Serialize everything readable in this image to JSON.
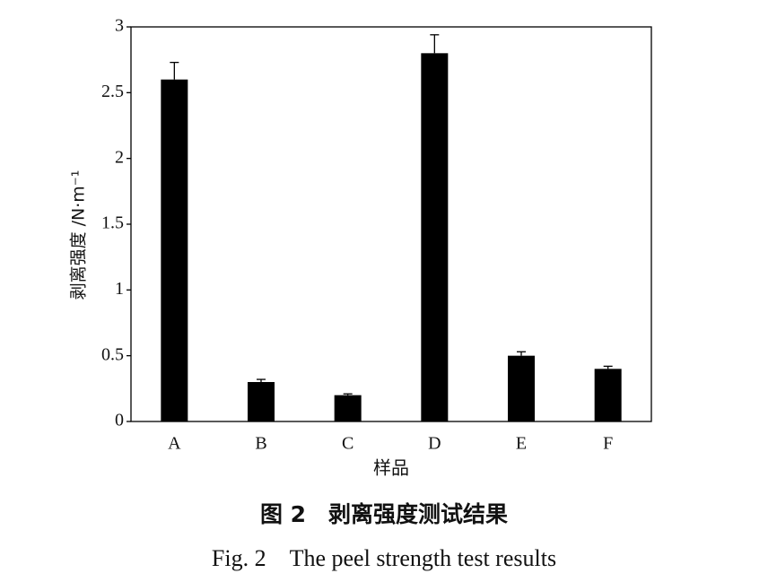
{
  "chart_data": {
    "type": "bar",
    "ylabel": "剥离强度 /N·m⁻¹",
    "xlabel": "样品",
    "caption_cn": "图 2　剥离强度测试结果",
    "caption_en": "Fig. 2　The peel strength test results",
    "categories": [
      "A",
      "B",
      "C",
      "D",
      "E",
      "F"
    ],
    "values": [
      2.6,
      0.3,
      0.2,
      2.8,
      0.5,
      0.4
    ],
    "errors": [
      0.13,
      0.02,
      0.01,
      0.14,
      0.03,
      0.02
    ],
    "color": "#000000",
    "ylim": [
      0,
      3
    ],
    "yticks": [
      0,
      0.5,
      1,
      1.5,
      2,
      2.5,
      3
    ],
    "grid": false
  }
}
